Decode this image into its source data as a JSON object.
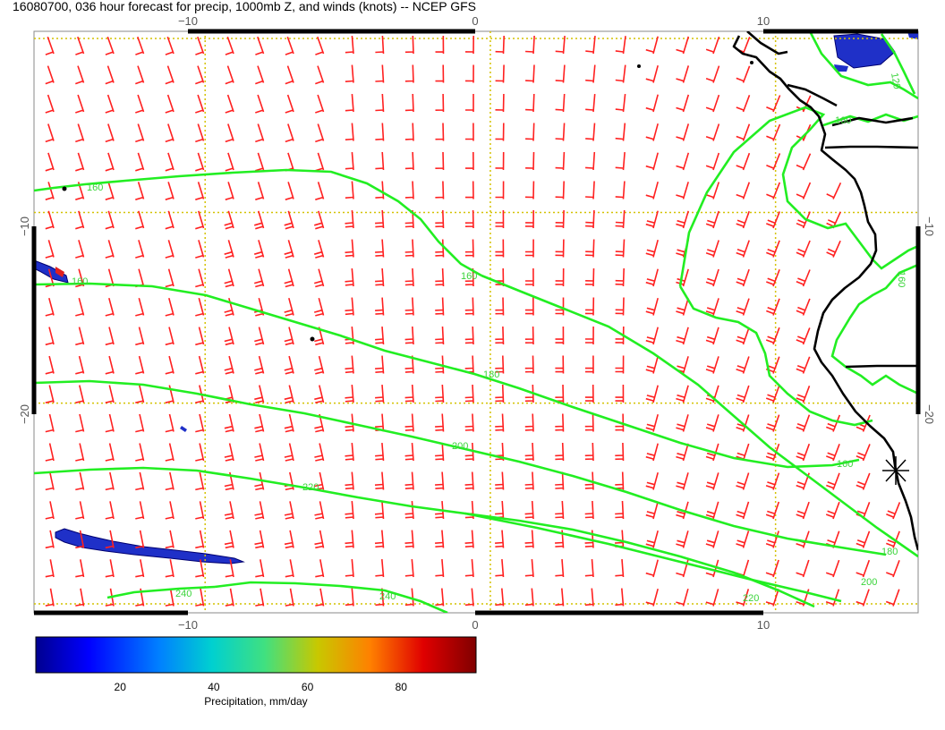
{
  "title": "16080700, 036 hour forecast for precip, 1000mb Z, and winds (knots) -- NCEP GFS",
  "map": {
    "lon_range": [
      -16,
      15
    ],
    "lat_range": [
      -31,
      -0.5
    ],
    "grid_lons": [
      -10,
      0,
      10
    ],
    "grid_lats": [
      -10,
      -20
    ],
    "top_tick_labels": [
      "−10",
      "0",
      "10"
    ],
    "bottom_tick_labels": [
      "−10",
      "0",
      "10"
    ],
    "left_tick_labels": [
      "−10",
      "−20"
    ],
    "right_tick_labels": [
      "−10",
      "−20"
    ],
    "contours": [
      {
        "level_label": "160",
        "label_pos": "left"
      },
      {
        "level_label": "160",
        "label_pos": "left"
      },
      {
        "level_label": "160",
        "label_pos": "middle"
      },
      {
        "level_label": "180",
        "label_pos": "middle"
      },
      {
        "level_label": "200",
        "label_pos": "middle"
      },
      {
        "level_label": "220",
        "label_pos": "middle"
      },
      {
        "level_label": "240",
        "label_pos": "bottom"
      },
      {
        "level_label": "240",
        "label_pos": "bottom"
      },
      {
        "level_label": "160",
        "label_pos": "east"
      },
      {
        "level_label": "160",
        "label_pos": "coast"
      },
      {
        "level_label": "120",
        "label_pos": "northeast"
      },
      {
        "level_label": "160",
        "label_pos": "southeast"
      },
      {
        "level_label": "180",
        "label_pos": "southeast"
      },
      {
        "level_label": "200",
        "label_pos": "southeast"
      },
      {
        "level_label": "220",
        "label_pos": "southeast"
      }
    ],
    "colors": {
      "wind_barbs": "#ff2020",
      "contours": "#22ee22",
      "grid": "#d4c200",
      "coastline": "#000000",
      "precip_low": "#1020a0"
    }
  },
  "colorbar": {
    "tick_labels": [
      "20",
      "40",
      "60",
      "80"
    ],
    "tick_values": [
      20,
      40,
      60,
      80
    ],
    "range": [
      2,
      96
    ],
    "label": "Precipitation, mm/day",
    "colors": [
      "#00008f",
      "#0000ff",
      "#0080ff",
      "#00d0d0",
      "#40e080",
      "#c8c800",
      "#ff8000",
      "#e00000",
      "#800000"
    ]
  }
}
